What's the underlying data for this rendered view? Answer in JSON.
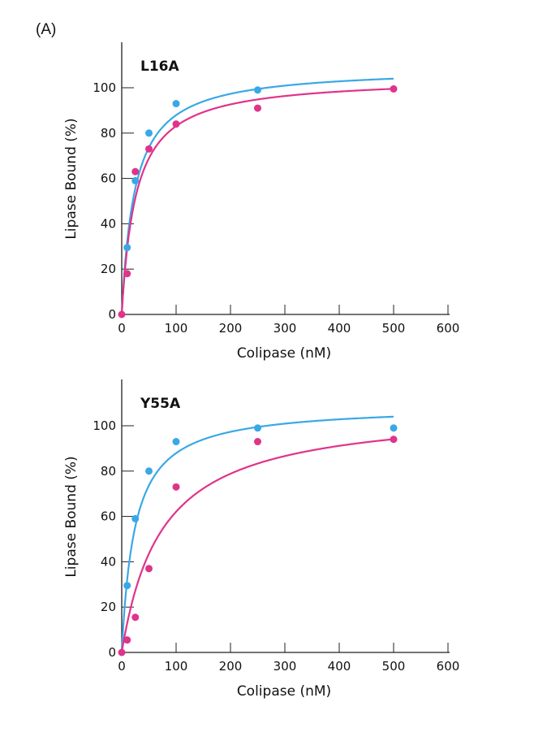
{
  "panel_label": "(A)",
  "chart_data": [
    {
      "type": "scatter",
      "title": "L16A",
      "xlabel": "Colipase (nM)",
      "ylabel": "Lipase Bound (%)",
      "xlim": [
        0,
        600
      ],
      "ylim": [
        0,
        120
      ],
      "xticks": [
        "0",
        "100",
        "200",
        "300",
        "400",
        "500",
        "600"
      ],
      "yticks": [
        "0",
        "20",
        "40",
        "60",
        "80",
        "100"
      ],
      "grid": false,
      "series": [
        {
          "color": "#3aa8e6",
          "points": [
            [
              10,
              29.5
            ],
            [
              25,
              59
            ],
            [
              50,
              80
            ],
            [
              100,
              93
            ],
            [
              250,
              99
            ]
          ],
          "fit": {
            "model": "hyperbolic",
            "bmax": 109,
            "kd": 24
          }
        },
        {
          "color": "#e0338a",
          "points": [
            [
              0,
              0
            ],
            [
              10,
              18
            ],
            [
              25,
              63
            ],
            [
              50,
              73
            ],
            [
              100,
              84
            ],
            [
              250,
              91
            ],
            [
              500,
              99.5
            ]
          ],
          "fit": {
            "model": "hyperbolic",
            "bmax": 104.7,
            "kd": 26
          }
        }
      ]
    },
    {
      "type": "scatter",
      "title": "Y55A",
      "xlabel": "Colipase (nM)",
      "ylabel": "Lipase Bound (%)",
      "xlim": [
        0,
        600
      ],
      "ylim": [
        0,
        120
      ],
      "xticks": [
        "0",
        "100",
        "200",
        "300",
        "400",
        "500",
        "600"
      ],
      "yticks": [
        "0",
        "20",
        "40",
        "60",
        "80",
        "100"
      ],
      "grid": false,
      "series": [
        {
          "color": "#3aa8e6",
          "points": [
            [
              10,
              29.5
            ],
            [
              25,
              59
            ],
            [
              50,
              80
            ],
            [
              100,
              93
            ],
            [
              250,
              99
            ],
            [
              500,
              99
            ]
          ],
          "fit": {
            "model": "hyperbolic",
            "bmax": 109,
            "kd": 24
          }
        },
        {
          "color": "#e0338a",
          "points": [
            [
              0,
              0
            ],
            [
              10,
              5.5
            ],
            [
              25,
              15.5
            ],
            [
              50,
              37
            ],
            [
              100,
              73
            ],
            [
              250,
              93
            ],
            [
              500,
              94
            ]
          ],
          "fit": {
            "model": "hyperbolic",
            "bmax": 108,
            "kd": 74
          }
        }
      ]
    }
  ]
}
